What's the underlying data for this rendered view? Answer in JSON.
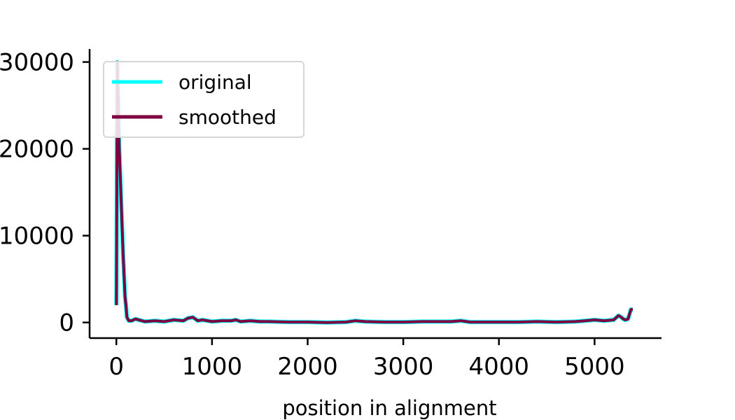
{
  "chart_data": {
    "type": "line",
    "title": "",
    "xlabel": "position in alignment",
    "ylabel": "",
    "xlim": [
      -280,
      5700
    ],
    "ylim": [
      -1800,
      31500
    ],
    "xticks": [
      0,
      1000,
      2000,
      3000,
      4000,
      5000
    ],
    "xtick_labels": [
      "0",
      "1000",
      "2000",
      "3000",
      "4000",
      "5000"
    ],
    "yticks": [
      0,
      10000,
      20000,
      30000
    ],
    "ytick_labels": [
      "0",
      "10000",
      "20000",
      "30000"
    ],
    "grid": false,
    "legend_position": "top-left",
    "series": [
      {
        "name": "original",
        "color": "#00ffff",
        "x": [
          0,
          10,
          30,
          50,
          70,
          90,
          100,
          110,
          130,
          160,
          200,
          300,
          400,
          500,
          600,
          700,
          750,
          800,
          850,
          900,
          1000,
          1100,
          1200,
          1250,
          1300,
          1400,
          1500,
          1600,
          1800,
          2000,
          2200,
          2400,
          2500,
          2600,
          2800,
          3000,
          3200,
          3400,
          3500,
          3600,
          3700,
          3800,
          4000,
          4200,
          4400,
          4600,
          4800,
          4900,
          5000,
          5100,
          5200,
          5250,
          5280,
          5300,
          5320,
          5350,
          5380,
          5400
        ],
        "y": [
          2000,
          30000,
          20000,
          14000,
          8000,
          3000,
          2000,
          600,
          200,
          200,
          400,
          100,
          200,
          100,
          300,
          200,
          500,
          600,
          200,
          300,
          100,
          200,
          200,
          300,
          100,
          200,
          100,
          100,
          50,
          50,
          0,
          50,
          200,
          100,
          50,
          50,
          100,
          100,
          100,
          200,
          50,
          50,
          50,
          50,
          100,
          50,
          100,
          200,
          300,
          200,
          300,
          800,
          600,
          400,
          300,
          400,
          1500,
          1500
        ]
      },
      {
        "name": "smoothed",
        "color": "#7f0040",
        "x": [
          0,
          10,
          30,
          50,
          70,
          90,
          100,
          110,
          130,
          160,
          200,
          300,
          400,
          500,
          600,
          700,
          750,
          800,
          850,
          900,
          1000,
          1100,
          1200,
          1250,
          1300,
          1400,
          1500,
          1600,
          1800,
          2000,
          2200,
          2400,
          2500,
          2600,
          2800,
          3000,
          3200,
          3400,
          3500,
          3600,
          3700,
          3800,
          4000,
          4200,
          4400,
          4600,
          4800,
          4900,
          5000,
          5100,
          5200,
          5250,
          5280,
          5300,
          5320,
          5350,
          5380,
          5400
        ],
        "y": [
          2000,
          30000,
          20000,
          14000,
          8000,
          3000,
          2000,
          600,
          200,
          200,
          400,
          100,
          200,
          100,
          300,
          200,
          500,
          600,
          200,
          300,
          100,
          200,
          200,
          300,
          100,
          200,
          100,
          100,
          50,
          50,
          0,
          50,
          200,
          100,
          50,
          50,
          100,
          100,
          100,
          200,
          50,
          50,
          50,
          50,
          100,
          50,
          100,
          200,
          300,
          200,
          300,
          800,
          600,
          400,
          300,
          400,
          1500,
          1500
        ]
      }
    ]
  }
}
